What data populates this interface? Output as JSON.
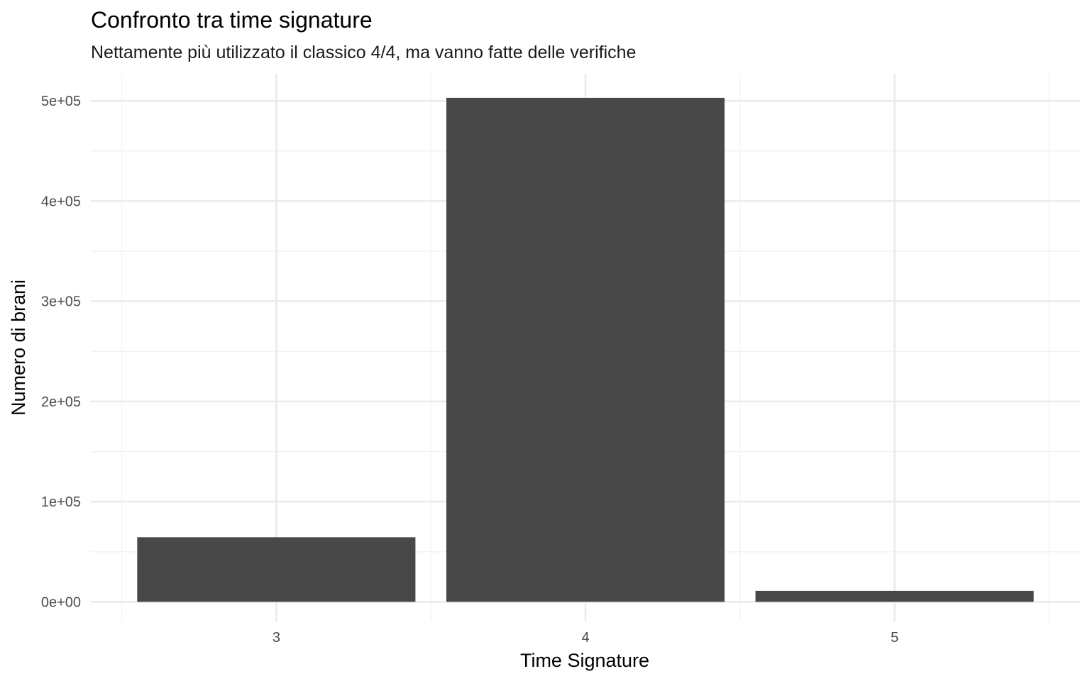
{
  "chart_data": {
    "type": "bar",
    "title": "Confronto tra time signature",
    "subtitle": "Nettamente più utilizzato il classico 4/4, ma vanno fatte delle verifiche",
    "xlabel": "Time Signature",
    "ylabel": "Numero di brani",
    "categories": [
      "3",
      "4",
      "5"
    ],
    "values": [
      64500,
      503000,
      11000
    ],
    "ylim": [
      -19500,
      527000
    ],
    "yticks": [
      0,
      100000,
      200000,
      300000,
      400000,
      500000
    ],
    "ytick_labels": [
      "0e+00",
      "1e+05",
      "2e+05",
      "3e+05",
      "4e+05",
      "5e+05"
    ],
    "bar_color": "#484848",
    "grid": true,
    "legend": "none"
  }
}
